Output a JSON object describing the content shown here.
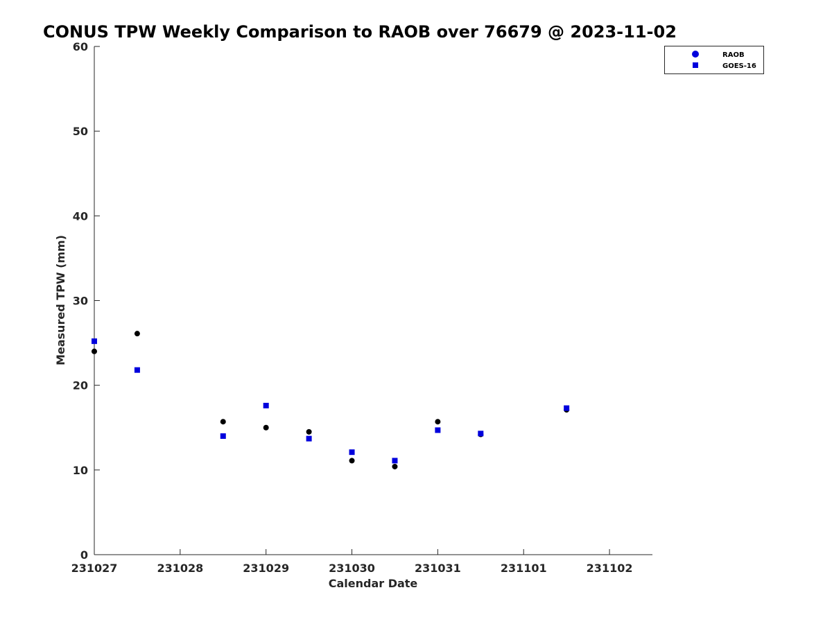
{
  "chart_data": {
    "type": "scatter",
    "title": "CONUS TPW Weekly Comparison to RAOB over 76679 @ 2023-11-02",
    "xlabel": "Calendar Date",
    "ylabel": "Measured TPW (mm)",
    "xlim": [
      0,
      6.5
    ],
    "ylim": [
      0,
      60
    ],
    "x_ticks": [
      0,
      1,
      2,
      3,
      4,
      5,
      6
    ],
    "x_tick_labels": [
      "231027",
      "231028",
      "231029",
      "231030",
      "231031",
      "231101",
      "231102"
    ],
    "y_ticks": [
      0,
      10,
      20,
      30,
      40,
      50,
      60
    ],
    "y_tick_labels": [
      "0",
      "10",
      "20",
      "30",
      "40",
      "50",
      "60"
    ],
    "grid": false,
    "legend_position": "top-right",
    "series": [
      {
        "name": "RAOB",
        "marker": "circle",
        "color": "#000000",
        "legend_color": "#0000dd",
        "x": [
          0,
          0.5,
          1.5,
          2,
          2.5,
          3,
          3.5,
          4,
          4.5,
          5.5
        ],
        "y": [
          24.0,
          26.1,
          15.7,
          15.0,
          14.5,
          11.1,
          10.4,
          15.7,
          14.2,
          17.1
        ]
      },
      {
        "name": "GOES-16",
        "marker": "square",
        "color": "#0000dd",
        "legend_color": "#0000dd",
        "x": [
          0,
          0.5,
          1.5,
          2,
          2.5,
          3,
          3.5,
          4,
          4.5,
          5.5
        ],
        "y": [
          25.2,
          21.8,
          14.0,
          17.6,
          13.7,
          12.1,
          11.1,
          14.7,
          14.3,
          17.3
        ]
      }
    ]
  }
}
